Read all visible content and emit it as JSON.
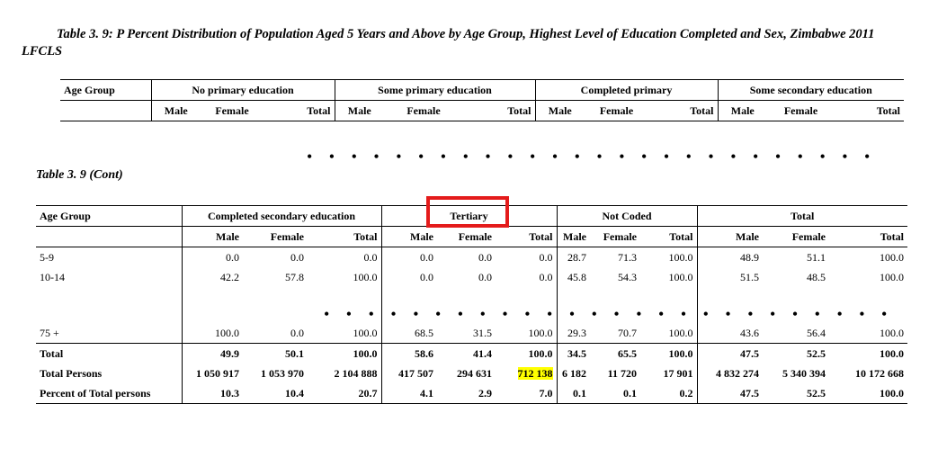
{
  "title": {
    "line1": "Table 3. 9: P Percent Distribution of Population Aged 5 Years and Above by Age Group, Highest Level of Education Completed and Sex, Zimbabwe 2011",
    "line2": "LFCLS"
  },
  "table1": {
    "age_group": "Age Group",
    "groups": [
      "No primary education",
      "Some primary education",
      "Completed primary",
      "Some secondary education"
    ],
    "sub": [
      "Male",
      "Female",
      "Total"
    ]
  },
  "dots": "• • • • • • • • • • • • • • • • • • • • • • • • • •",
  "subtitle": "Table 3. 9 (Cont)",
  "table2": {
    "age_group": "Age Group",
    "groups": [
      "Completed secondary education",
      "Tertiary",
      "Not Coded",
      "Total"
    ],
    "sub": [
      "Male",
      "Female",
      "Total"
    ],
    "rows_top": [
      {
        "label": "5-9",
        "values": [
          "0.0",
          "0.0",
          "0.0",
          "0.0",
          "0.0",
          "0.0",
          "28.7",
          "71.3",
          "100.0",
          "48.9",
          "51.1",
          "100.0"
        ]
      },
      {
        "label": "10-14",
        "values": [
          "42.2",
          "57.8",
          "100.0",
          "0.0",
          "0.0",
          "0.0",
          "45.8",
          "54.3",
          "100.0",
          "51.5",
          "48.5",
          "100.0"
        ]
      }
    ],
    "rows_bottom": [
      {
        "label": "75 +",
        "values": [
          "100.0",
          "0.0",
          "100.0",
          "68.5",
          "31.5",
          "100.0",
          "29.3",
          "70.7",
          "100.0",
          "43.6",
          "56.4",
          "100.0"
        ]
      },
      {
        "label": "Total",
        "values": [
          "49.9",
          "50.1",
          "100.0",
          "58.6",
          "41.4",
          "100.0",
          "34.5",
          "65.5",
          "100.0",
          "47.5",
          "52.5",
          "100.0"
        ]
      },
      {
        "label": "Total Persons",
        "values": [
          "1 050 917",
          "1 053 970",
          "2 104 888",
          "417 507",
          "294 631",
          "712 138",
          "6 182",
          "11 720",
          "17 901",
          "4 832 274",
          "5 340 394",
          "10 172 668"
        ]
      },
      {
        "label": "Percent of Total persons",
        "values": [
          "10.3",
          "10.4",
          "20.7",
          "4.1",
          "2.9",
          "7.0",
          "0.1",
          "0.1",
          "0.2",
          "47.5",
          "52.5",
          "100.0"
        ]
      }
    ]
  },
  "colors": {
    "highlight": "#ffff00",
    "annotation_box": "#e41b1b"
  }
}
